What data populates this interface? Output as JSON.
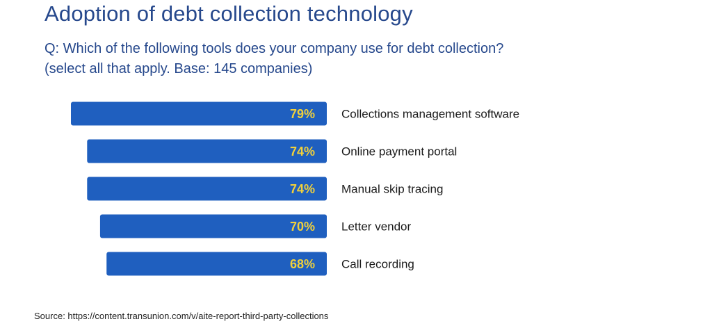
{
  "title": "Adoption of debt collection technology",
  "subtitle": {
    "line1": "Q:  Which of the following tools does your company use for debt collection?",
    "line2": "(select all that apply. Base: 145 companies)"
  },
  "source": "Source: https://content.transunion.com/v/aite-report-third-party-collections",
  "colors": {
    "bar": "#1f5fbf",
    "value_label": "#f2d13a",
    "category_label": "#1a1a1a",
    "title": "#26488c"
  },
  "chart_data": {
    "type": "bar",
    "orientation": "horizontal",
    "bar_alignment": "right",
    "categories": [
      "Collections management software",
      "Online payment portal",
      "Manual skip tracing",
      "Letter vendor",
      "Call recording"
    ],
    "values": [
      79,
      74,
      74,
      70,
      68
    ],
    "value_labels": [
      "79%",
      "74%",
      "74%",
      "70%",
      "68%"
    ],
    "unit": "%",
    "xlim": [
      0,
      100
    ],
    "grid": false,
    "legend": "none"
  }
}
